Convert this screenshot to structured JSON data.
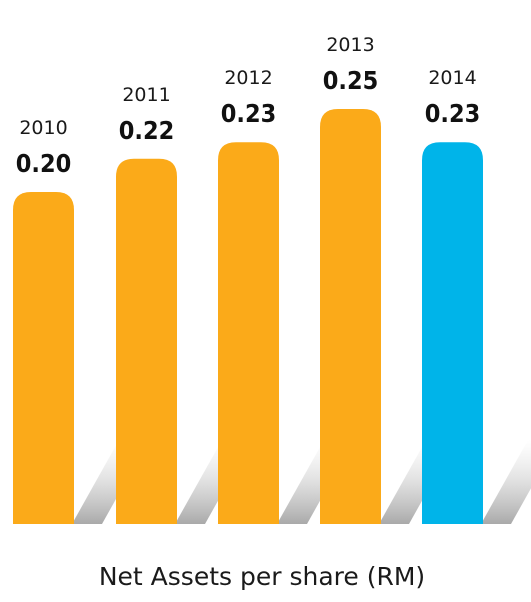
{
  "chart_data": {
    "type": "bar",
    "title": "Net Assets per share (RM)",
    "categories": [
      "2010",
      "2011",
      "2012",
      "2013",
      "2014"
    ],
    "values": [
      0.2,
      0.22,
      0.23,
      0.25,
      0.23
    ],
    "value_labels": [
      "0.20",
      "0.22",
      "0.23",
      "0.25",
      "0.23"
    ],
    "xlabel": "",
    "ylabel": "",
    "grid": false,
    "legend": "none",
    "colors": {
      "default": "#FBAA19",
      "highlight": "#00B4E9",
      "shadow": "#bfbfbf"
    },
    "highlight_index": 4
  }
}
